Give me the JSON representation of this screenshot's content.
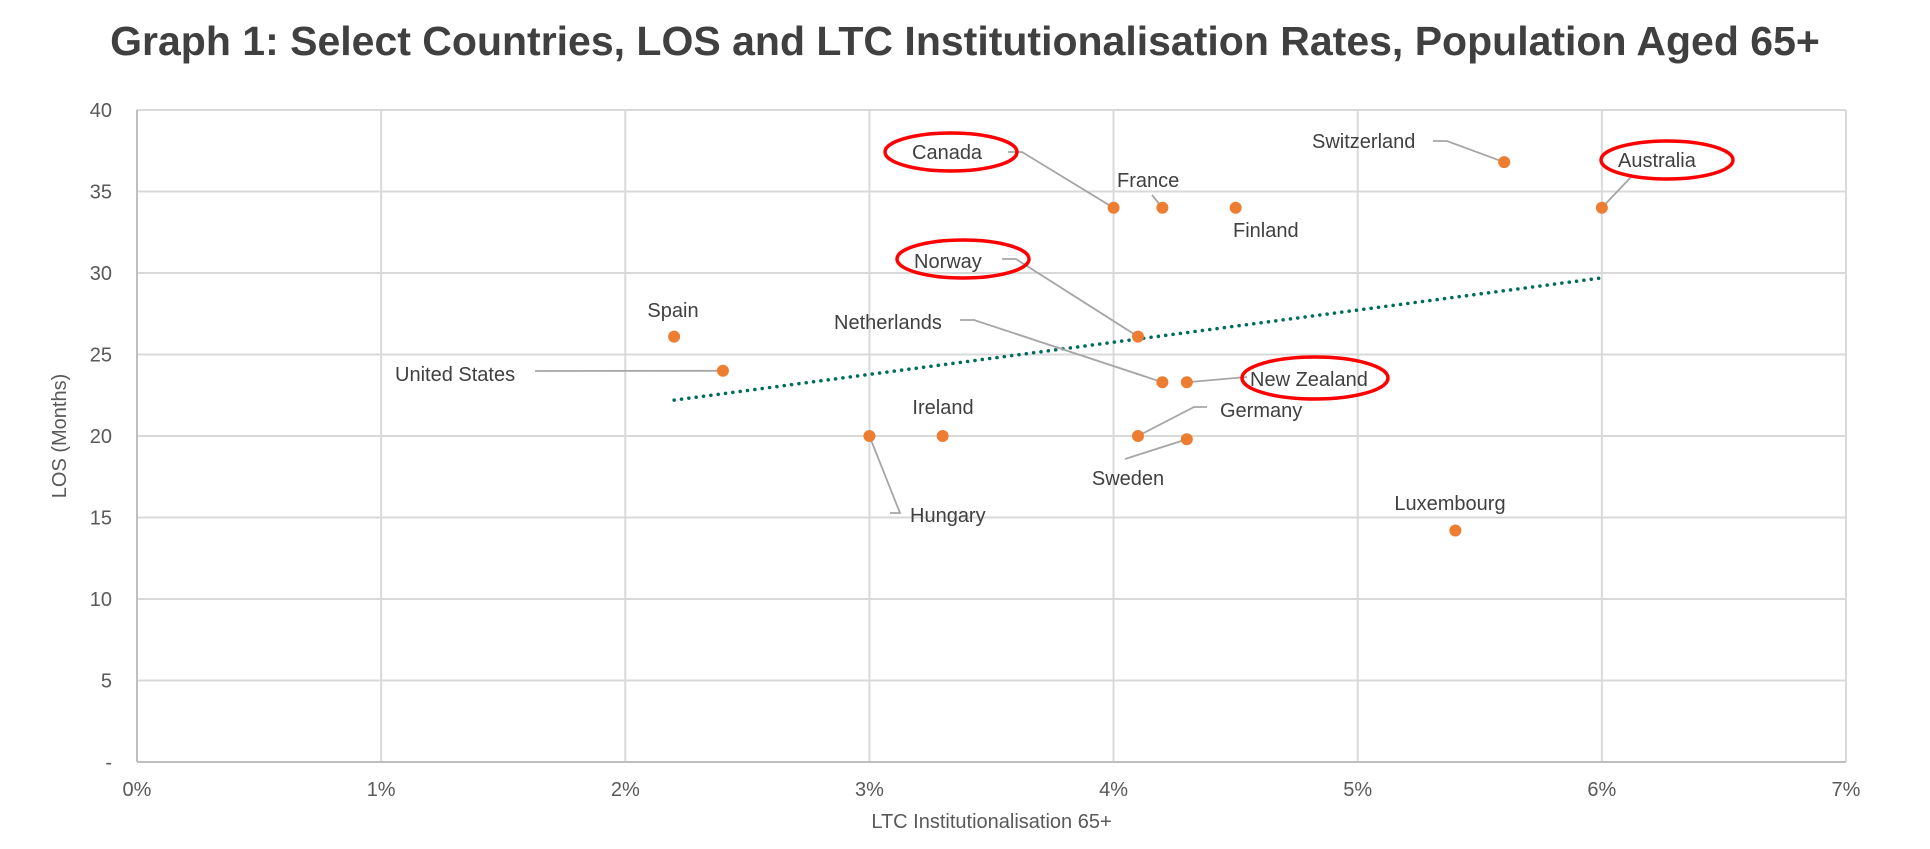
{
  "chart_data": {
    "type": "scatter",
    "title": "Graph 1: Select Countries, LOS and LTC Institutionalisation Rates, Population Aged 65+",
    "xlabel": "LTC Institutionalisation 65+",
    "ylabel": "LOS (Months)",
    "xlim": [
      0,
      7
    ],
    "ylim": [
      0,
      40
    ],
    "x_unit": "percent",
    "x_ticks": [
      "0%",
      "1%",
      "2%",
      "3%",
      "4%",
      "5%",
      "6%",
      "7%"
    ],
    "y_ticks": [
      "-",
      "5",
      "10",
      "15",
      "20",
      "25",
      "30",
      "35",
      "40"
    ],
    "grid": true,
    "legend": "none",
    "marker_color": "#ED7D31",
    "trendline_color": "#006B5F",
    "highlight_color": "#FF0000",
    "points": [
      {
        "name": "Canada",
        "x": 4.0,
        "y": 34.0,
        "highlighted": true
      },
      {
        "name": "France",
        "x": 4.2,
        "y": 34.0,
        "highlighted": false
      },
      {
        "name": "Finland",
        "x": 4.5,
        "y": 34.0,
        "highlighted": false
      },
      {
        "name": "Switzerland",
        "x": 5.6,
        "y": 36.8,
        "highlighted": false
      },
      {
        "name": "Australia",
        "x": 6.0,
        "y": 34.0,
        "highlighted": true
      },
      {
        "name": "Norway",
        "x": 4.1,
        "y": 26.1,
        "highlighted": true
      },
      {
        "name": "Spain",
        "x": 2.2,
        "y": 26.1,
        "highlighted": false
      },
      {
        "name": "United States",
        "x": 2.4,
        "y": 24.0,
        "highlighted": false
      },
      {
        "name": "Netherlands",
        "x": 4.2,
        "y": 23.3,
        "highlighted": false
      },
      {
        "name": "New Zealand",
        "x": 4.3,
        "y": 23.3,
        "highlighted": true
      },
      {
        "name": "Hungary",
        "x": 3.0,
        "y": 20.0,
        "highlighted": false
      },
      {
        "name": "Ireland",
        "x": 3.3,
        "y": 20.0,
        "highlighted": false
      },
      {
        "name": "Germany",
        "x": 4.1,
        "y": 20.0,
        "highlighted": false
      },
      {
        "name": "Sweden",
        "x": 4.3,
        "y": 19.8,
        "highlighted": false
      },
      {
        "name": "Luxembourg",
        "x": 5.4,
        "y": 14.2,
        "highlighted": false
      }
    ],
    "trendline": {
      "type": "linear",
      "style": "dotted",
      "start": {
        "x": 2.2,
        "y": 22.2
      },
      "end": {
        "x": 6.0,
        "y": 29.7
      }
    }
  }
}
